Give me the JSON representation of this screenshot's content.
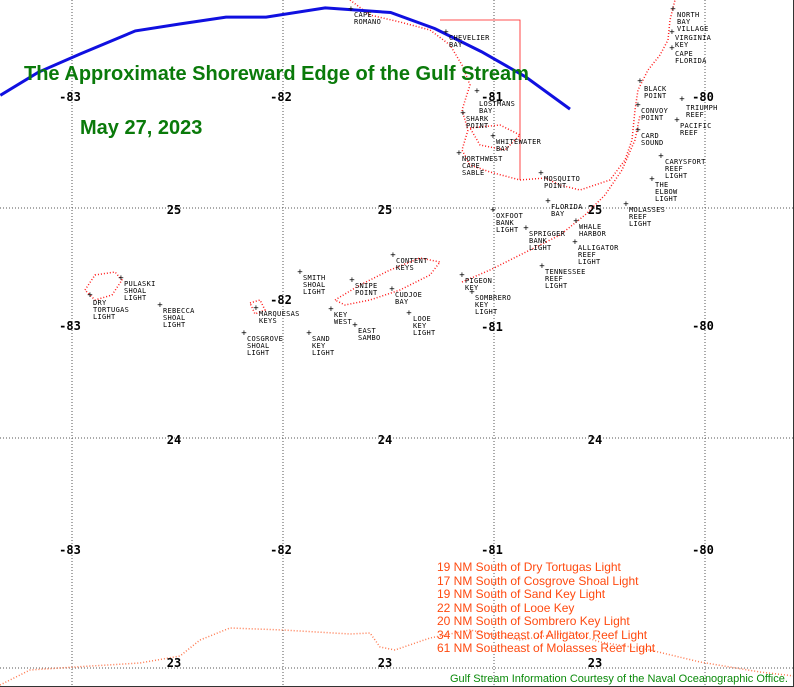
{
  "title": "The Approximate Shoreward Edge of the Gulf Stream",
  "date": "May 27, 2023",
  "colors": {
    "title": "#0a7a0a",
    "gulf_stream_line": "#1010e0",
    "coastline": "#ff0000",
    "legend": "#ff4a10"
  },
  "grid": {
    "longitudes": [
      "-83",
      "-82",
      "-81",
      "-80"
    ],
    "latitudes": [
      "25",
      "24",
      "23"
    ]
  },
  "gulf_stream_edge": {
    "name": "Shoreward edge of Gulf Stream",
    "points_lon_lat": [
      [
        -83.34,
        25.49
      ],
      [
        -83.16,
        25.59
      ],
      [
        -82.96,
        25.67
      ],
      [
        -82.7,
        25.77
      ],
      [
        -82.49,
        25.8
      ],
      [
        -82.27,
        25.83
      ],
      [
        -82.08,
        25.83
      ],
      [
        -81.8,
        25.87
      ],
      [
        -81.49,
        25.85
      ],
      [
        -81.28,
        25.78
      ],
      [
        -81.06,
        25.68
      ],
      [
        -80.85,
        25.57
      ],
      [
        -80.64,
        25.43
      ]
    ]
  },
  "stations": [
    "CAPE\nROMANO",
    "CHEVELIER\nBAY",
    "LOSTMANS\nBAY",
    "SHARK\nPOINT",
    "WHITEWATER\nBAY",
    "NORTHWEST\nCAPE\nSABLE",
    "MOSQUITO\nPOINT",
    "FLORIDA\nBAY",
    "OXFOOT\nBANK\nLIGHT",
    "SPRIGGER\nBANK\nLIGHT",
    "WHALE\nHARBOR",
    "ALLIGATOR\nREEF\nLIGHT",
    "TENNESSEE\nREEF\nLIGHT",
    "MOLASSES\nREEF\nLIGHT",
    "THE\nELBOW\nLIGHT",
    "CARYSFORT\nREEF\nLIGHT",
    "CARD\nSOUND",
    "PACIFIC\nREEF",
    "TRIUMPH\nREEF",
    "CONVOY\nPOINT",
    "BLACK\nPOINT",
    "CAPE\nFLORIDA",
    "VIRGINIA\nKEY",
    "NORTH\nBAY\nVILLAGE",
    "PIGEON\nKEY",
    "SOMBRERO\nKEY\nLIGHT",
    "DRY\nTORTUGAS\nLIGHT",
    "PULASKI\nSHOAL\nLIGHT",
    "REBECCA\nSHOAL\nLIGHT",
    "COSGROVE\nSHOAL\nLIGHT",
    "MARQUESAS\nKEYS",
    "SAND\nKEY\nLIGHT",
    "SMITH\nSHOAL\nLIGHT",
    "KEY\nWEST",
    "EAST\nSAMBO",
    "SNIPE\nPOINT",
    "CONTENT\nKEYS",
    "CUDJOE\nBAY",
    "LOOE\nKEY\nLIGHT"
  ],
  "legend": [
    "19 NM South of Dry Tortugas Light",
    "17 NM South of Cosgrove Shoal Light",
    "19 NM South of Sand Key Light",
    "22 NM South of Looe Key",
    "20 NM South of Sombrero Key Light",
    "34 NM Southeast of Alligator Reef Light",
    "61 NM Southeast of Molasses Reef Light"
  ],
  "credit": "Gulf Stream Information Courtesy of the Naval Oceanographic Office."
}
